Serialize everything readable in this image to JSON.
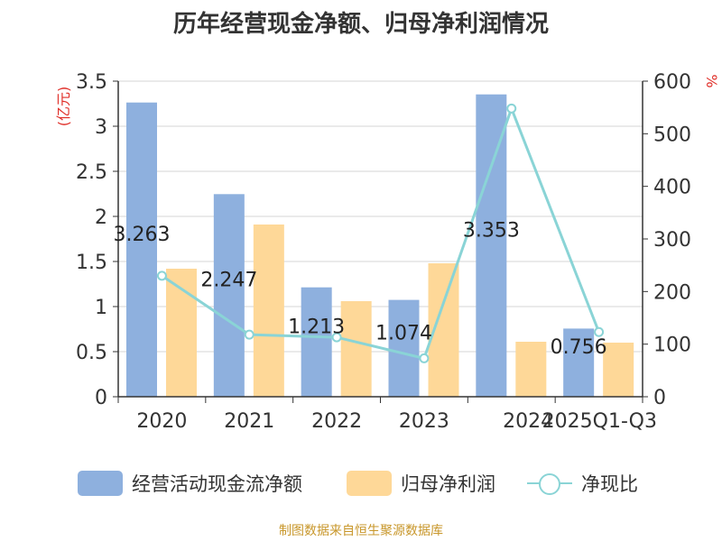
{
  "title": "历年经营现金净额、归母净利润情况",
  "source": "制图数据来自恒生聚源数据库",
  "legend": {
    "op": "经营活动现金流净额",
    "np": "归母净利润",
    "ratio": "净现比"
  },
  "colors": {
    "op": "#8eb0de",
    "np": "#fed898",
    "ratio": "#8ad4d6",
    "axis_unit": "#e0302a"
  },
  "chart_data": {
    "type": "bar",
    "categories": [
      "2020",
      "2021",
      "2022",
      "2023",
      "2024",
      "2025Q1-Q3"
    ],
    "series": [
      {
        "name": "经营活动现金流净额",
        "axis": "left",
        "values": [
          3.263,
          2.247,
          1.213,
          1.074,
          3.353,
          0.756
        ],
        "labels": [
          "3.263",
          "2.247",
          "1.213",
          "1.074",
          "3.353",
          "0.756"
        ]
      },
      {
        "name": "归母净利润",
        "axis": "left",
        "values": [
          1.42,
          1.91,
          1.06,
          1.48,
          0.61,
          0.6
        ]
      },
      {
        "name": "净现比",
        "axis": "right",
        "type": "line",
        "values": [
          230,
          118,
          113,
          73,
          548,
          123
        ]
      }
    ],
    "left_axis": {
      "unit": "(亿元)",
      "ylim": [
        0,
        3.5
      ],
      "ticks": [
        "0",
        "0.5",
        "1",
        "1.5",
        "2",
        "2.5",
        "3",
        "3.5"
      ]
    },
    "right_axis": {
      "unit": "%",
      "ylim": [
        0,
        600
      ],
      "ticks": [
        "0",
        "100",
        "200",
        "300",
        "400",
        "500",
        "600"
      ]
    },
    "grid": true,
    "legend_position": "bottom"
  }
}
